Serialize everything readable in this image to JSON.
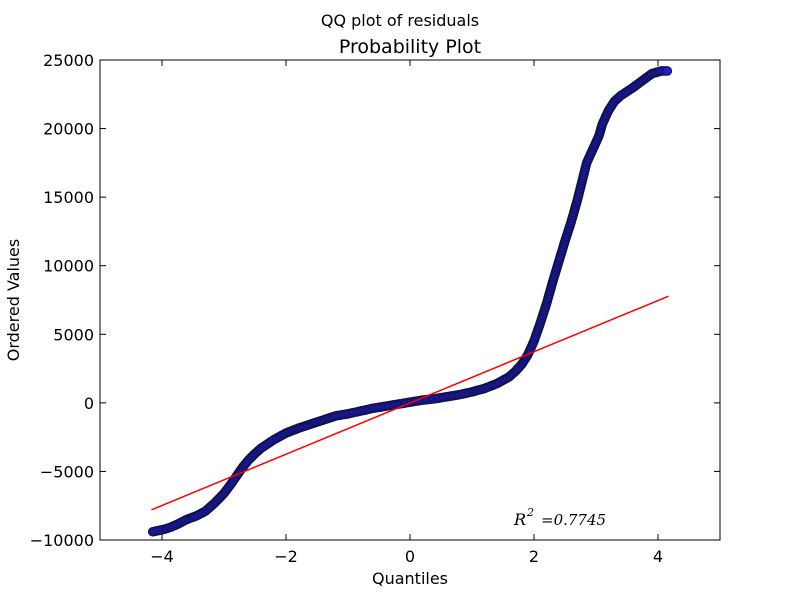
{
  "chart_data": {
    "type": "scatter",
    "suptitle": "QQ plot of residuals",
    "title": "Probability Plot",
    "xlabel": "Quantiles",
    "ylabel": "Ordered Values",
    "xlim": [
      -5,
      5
    ],
    "ylim": [
      -10000,
      25000
    ],
    "x_ticks": [
      -4,
      -2,
      0,
      2,
      4
    ],
    "x_tick_labels": [
      "−4",
      "−2",
      "0",
      "2",
      "4"
    ],
    "y_ticks": [
      -10000,
      -5000,
      0,
      5000,
      10000,
      15000,
      20000,
      25000
    ],
    "y_tick_labels": [
      "−10000",
      "−5000",
      "0",
      "5000",
      "10000",
      "15000",
      "20000",
      "25000"
    ],
    "grid": false,
    "annotation": {
      "r2_label": "R",
      "r2_exponent": "2",
      "r2_value": "=0.7745"
    },
    "fit_line": {
      "x": [
        -4.17,
        4.17
      ],
      "y": [
        -7800,
        7780
      ],
      "color": "#ff0000"
    },
    "marker_fill": "#1f1fd6",
    "marker_edge": "#10104a",
    "series": [
      {
        "x": [
          -4.15,
          -4.05,
          -3.95,
          -3.85,
          -3.75,
          -3.6,
          -3.45,
          -3.3,
          -3.15,
          -3.0,
          -2.9,
          -2.8,
          -2.7,
          -2.6,
          -2.5,
          -2.4,
          -2.3,
          -2.2,
          -2.1,
          -2.0,
          -1.8,
          -1.6,
          -1.4,
          -1.2,
          -1.0,
          -0.8,
          -0.6,
          -0.4,
          -0.2,
          0.0,
          0.2,
          0.4,
          0.6,
          0.8,
          1.0,
          1.2,
          1.4,
          1.6,
          1.7,
          1.8,
          1.9,
          2.0,
          2.1,
          2.2,
          2.3,
          2.4,
          2.5,
          2.6,
          2.7,
          2.8,
          2.85,
          2.95,
          3.05,
          3.1,
          3.2,
          3.3,
          3.4,
          3.5,
          3.6,
          3.75,
          3.9,
          4.05,
          4.15
        ],
        "y": [
          -9400,
          -9300,
          -9200,
          -9050,
          -8850,
          -8500,
          -8250,
          -7900,
          -7300,
          -6600,
          -6000,
          -5350,
          -4700,
          -4150,
          -3700,
          -3300,
          -3000,
          -2700,
          -2450,
          -2200,
          -1850,
          -1550,
          -1250,
          -950,
          -800,
          -600,
          -400,
          -250,
          -100,
          50,
          200,
          300,
          450,
          600,
          800,
          1050,
          1400,
          1900,
          2300,
          2800,
          3500,
          4500,
          5800,
          7200,
          8800,
          10300,
          11800,
          13200,
          14800,
          16600,
          17500,
          18500,
          19500,
          20300,
          21300,
          22000,
          22400,
          22700,
          23000,
          23500,
          24000,
          24200,
          24200
        ]
      }
    ]
  }
}
